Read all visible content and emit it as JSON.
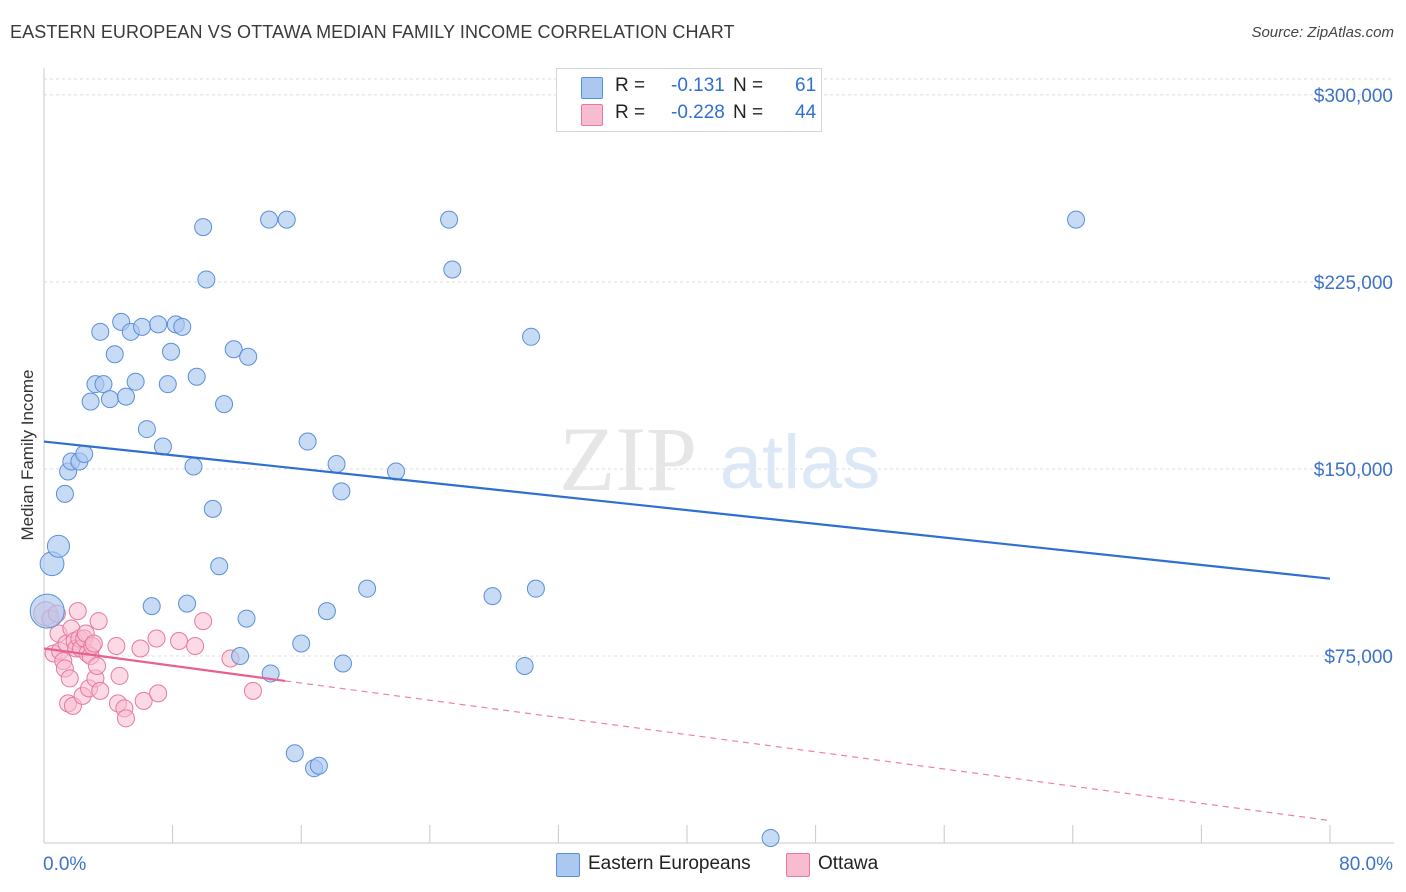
{
  "title": "EASTERN EUROPEAN VS OTTAWA MEDIAN FAMILY INCOME CORRELATION CHART",
  "source": "Source: ZipAtlas.com",
  "watermark": {
    "zip": "ZIP",
    "atlas": "atlas"
  },
  "colors": {
    "blue_fill": "#aac8f0",
    "blue_stroke": "#5a8fd8",
    "blue_line": "#2f6fd0",
    "pink_fill": "#f7bcd0",
    "pink_stroke": "#e8789c",
    "pink_line": "#e8608e",
    "axis_text": "#3d72c8",
    "grid": "#dcdcdc"
  },
  "legend": {
    "rows": [
      {
        "r_label": "R =",
        "r_value": "-0.131",
        "n_label": "N =",
        "n_value": "61",
        "color": "#aac8f0",
        "border": "#5a8fd8"
      },
      {
        "r_label": "R =",
        "r_value": "-0.228",
        "n_label": "N =",
        "n_value": "44",
        "color": "#f7bcd0",
        "border": "#e8789c"
      }
    ]
  },
  "bottom_legend": [
    {
      "label": "Eastern Europeans",
      "color": "#aac8f0",
      "border": "#5a8fd8"
    },
    {
      "label": "Ottawa",
      "color": "#f7bcd0",
      "border": "#e8789c"
    }
  ],
  "chart_data": {
    "type": "scatter",
    "title": "EASTERN EUROPEAN VS OTTAWA MEDIAN FAMILY INCOME CORRELATION CHART",
    "xlabel": "",
    "ylabel": "Median Family Income",
    "xlim": [
      0,
      80
    ],
    "ylim": [
      0,
      310000
    ],
    "x_tick_labels": [
      "0.0%",
      "80.0%"
    ],
    "y_ticks": [
      75000,
      150000,
      225000,
      300000
    ],
    "y_tick_labels": [
      "$75,000",
      "$150,000",
      "$225,000",
      "$300,000"
    ],
    "grid": true,
    "series": [
      {
        "name": "Eastern Europeans",
        "r": -0.131,
        "n": 61,
        "trend": {
          "x": [
            0,
            80
          ],
          "y": [
            161000,
            106000
          ],
          "dashed_to": null
        },
        "points": [
          [
            0.2,
            93000,
            2
          ],
          [
            0.5,
            112000,
            1.4
          ],
          [
            0.9,
            119000,
            1.3
          ],
          [
            1.3,
            140000,
            1
          ],
          [
            1.5,
            149000,
            1
          ],
          [
            1.7,
            153000,
            1
          ],
          [
            2.2,
            153000,
            1
          ],
          [
            2.5,
            156000,
            1
          ],
          [
            2.9,
            177000,
            1
          ],
          [
            3.2,
            184000,
            1
          ],
          [
            3.5,
            205000,
            1
          ],
          [
            3.7,
            184000,
            1
          ],
          [
            4.1,
            178000,
            1
          ],
          [
            4.4,
            196000,
            1
          ],
          [
            4.8,
            209000,
            1
          ],
          [
            5.1,
            179000,
            1
          ],
          [
            5.4,
            205000,
            1
          ],
          [
            5.7,
            185000,
            1
          ],
          [
            6.1,
            207000,
            1
          ],
          [
            6.4,
            166000,
            1
          ],
          [
            6.7,
            95000,
            1
          ],
          [
            7.1,
            208000,
            1
          ],
          [
            7.4,
            159000,
            1
          ],
          [
            7.7,
            184000,
            1
          ],
          [
            7.9,
            197000,
            1
          ],
          [
            8.2,
            208000,
            1
          ],
          [
            8.6,
            207000,
            1
          ],
          [
            8.9,
            96000,
            1
          ],
          [
            9.3,
            151000,
            1
          ],
          [
            9.5,
            187000,
            1
          ],
          [
            9.9,
            247000,
            1
          ],
          [
            10.1,
            226000,
            1
          ],
          [
            10.5,
            134000,
            1
          ],
          [
            10.9,
            111000,
            1
          ],
          [
            11.2,
            176000,
            1
          ],
          [
            11.8,
            198000,
            1
          ],
          [
            12.2,
            75000,
            1
          ],
          [
            12.7,
            195000,
            1
          ],
          [
            12.6,
            90000,
            1
          ],
          [
            14.0,
            250000,
            1
          ],
          [
            15.1,
            250000,
            1
          ],
          [
            14.1,
            68000,
            1
          ],
          [
            15.6,
            36000,
            1
          ],
          [
            16.0,
            80000,
            1
          ],
          [
            16.4,
            161000,
            1
          ],
          [
            16.8,
            30000,
            1
          ],
          [
            17.1,
            31000,
            1
          ],
          [
            17.6,
            93000,
            1
          ],
          [
            18.2,
            152000,
            1
          ],
          [
            18.6,
            72000,
            1
          ],
          [
            18.5,
            141000,
            1
          ],
          [
            20.1,
            102000,
            1
          ],
          [
            21.9,
            149000,
            1
          ],
          [
            25.2,
            250000,
            1
          ],
          [
            25.4,
            230000,
            1
          ],
          [
            27.9,
            99000,
            1
          ],
          [
            29.9,
            71000,
            1
          ],
          [
            30.3,
            203000,
            1
          ],
          [
            30.6,
            102000,
            1
          ],
          [
            45.2,
            2000,
            1
          ],
          [
            64.2,
            250000,
            1
          ]
        ]
      },
      {
        "name": "Ottawa",
        "r": -0.228,
        "n": 44,
        "trend": {
          "x": [
            0,
            15
          ],
          "y": [
            78000,
            65000
          ],
          "dashed_to": [
            80,
            9000
          ]
        },
        "points": [
          [
            0.1,
            92000,
            1.4
          ],
          [
            0.4,
            90000,
            1
          ],
          [
            0.6,
            76000,
            1
          ],
          [
            0.8,
            92000,
            1
          ],
          [
            0.9,
            84000,
            1
          ],
          [
            1.0,
            77000,
            1
          ],
          [
            1.2,
            73000,
            1
          ],
          [
            1.3,
            70000,
            1
          ],
          [
            1.4,
            80000,
            1
          ],
          [
            1.5,
            56000,
            1
          ],
          [
            1.6,
            66000,
            1
          ],
          [
            1.7,
            86000,
            1
          ],
          [
            1.8,
            55000,
            1
          ],
          [
            1.9,
            81000,
            1
          ],
          [
            2.0,
            78000,
            1
          ],
          [
            2.1,
            93000,
            1
          ],
          [
            2.2,
            82000,
            1
          ],
          [
            2.3,
            78000,
            1
          ],
          [
            2.4,
            59000,
            1
          ],
          [
            2.5,
            82000,
            1
          ],
          [
            2.6,
            84000,
            1
          ],
          [
            2.7,
            76000,
            1
          ],
          [
            2.8,
            62000,
            1
          ],
          [
            2.9,
            75000,
            1
          ],
          [
            3.0,
            79000,
            1
          ],
          [
            3.1,
            80000,
            1
          ],
          [
            3.2,
            66000,
            1
          ],
          [
            3.3,
            71000,
            1
          ],
          [
            3.4,
            89000,
            1
          ],
          [
            3.5,
            61000,
            1
          ],
          [
            4.5,
            79000,
            1
          ],
          [
            4.6,
            56000,
            1
          ],
          [
            4.7,
            67000,
            1
          ],
          [
            5.0,
            54000,
            1
          ],
          [
            5.1,
            50000,
            1
          ],
          [
            6.0,
            78000,
            1
          ],
          [
            6.2,
            57000,
            1
          ],
          [
            7.0,
            82000,
            1
          ],
          [
            7.1,
            60000,
            1
          ],
          [
            8.4,
            81000,
            1
          ],
          [
            9.4,
            79000,
            1
          ],
          [
            9.9,
            89000,
            1
          ],
          [
            11.6,
            74000,
            1
          ],
          [
            13.0,
            61000,
            1
          ]
        ]
      }
    ]
  }
}
